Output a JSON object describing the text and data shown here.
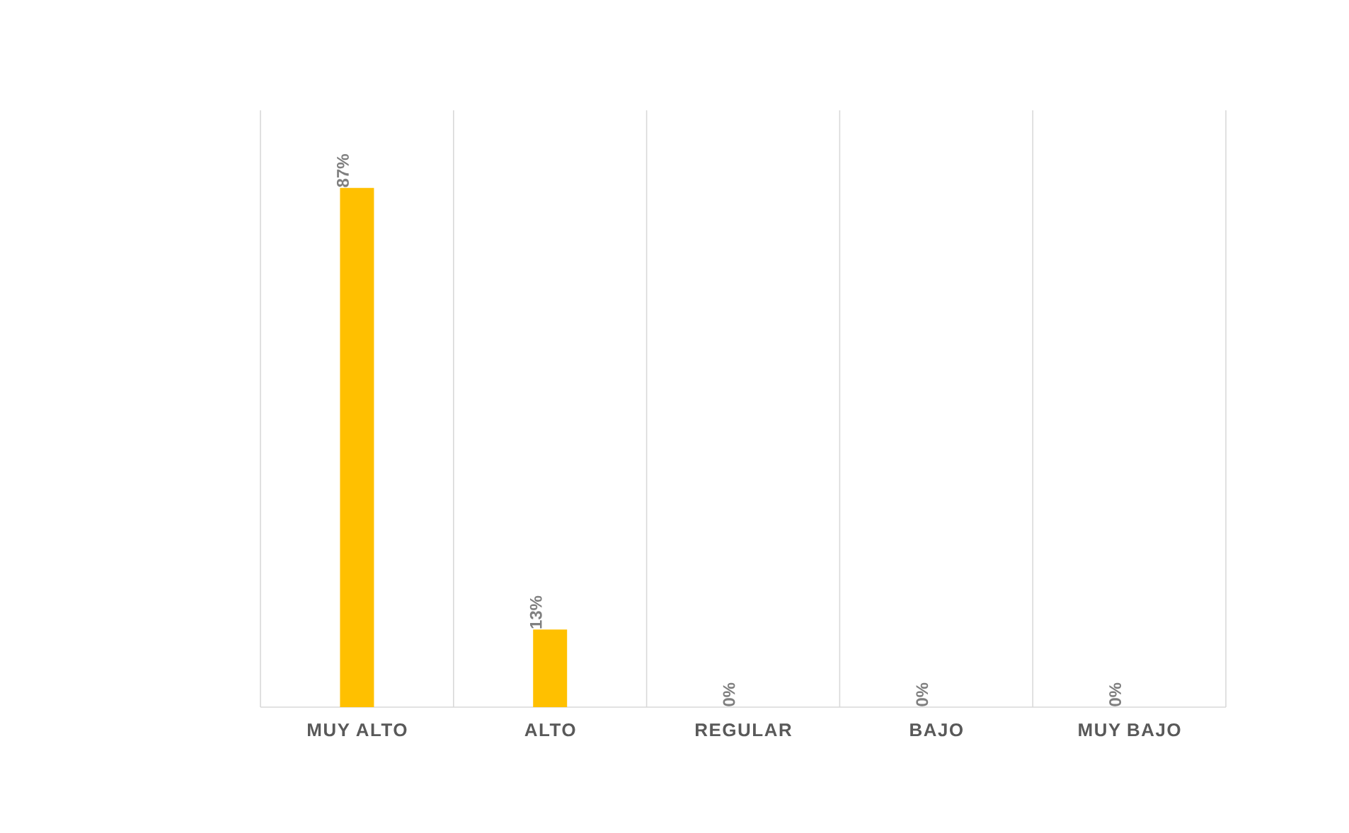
{
  "chart_data": {
    "type": "bar",
    "categories": [
      "MUY ALTO",
      "ALTO",
      "REGULAR",
      "BAJO",
      "MUY BAJO"
    ],
    "values": [
      87,
      13,
      0,
      0,
      0
    ],
    "value_labels": [
      "87%",
      "13%",
      "0%",
      "0%",
      "0%"
    ],
    "color": "#ffc000",
    "ylim": [
      0,
      100
    ],
    "tick_labels": "x",
    "grid": "x"
  }
}
